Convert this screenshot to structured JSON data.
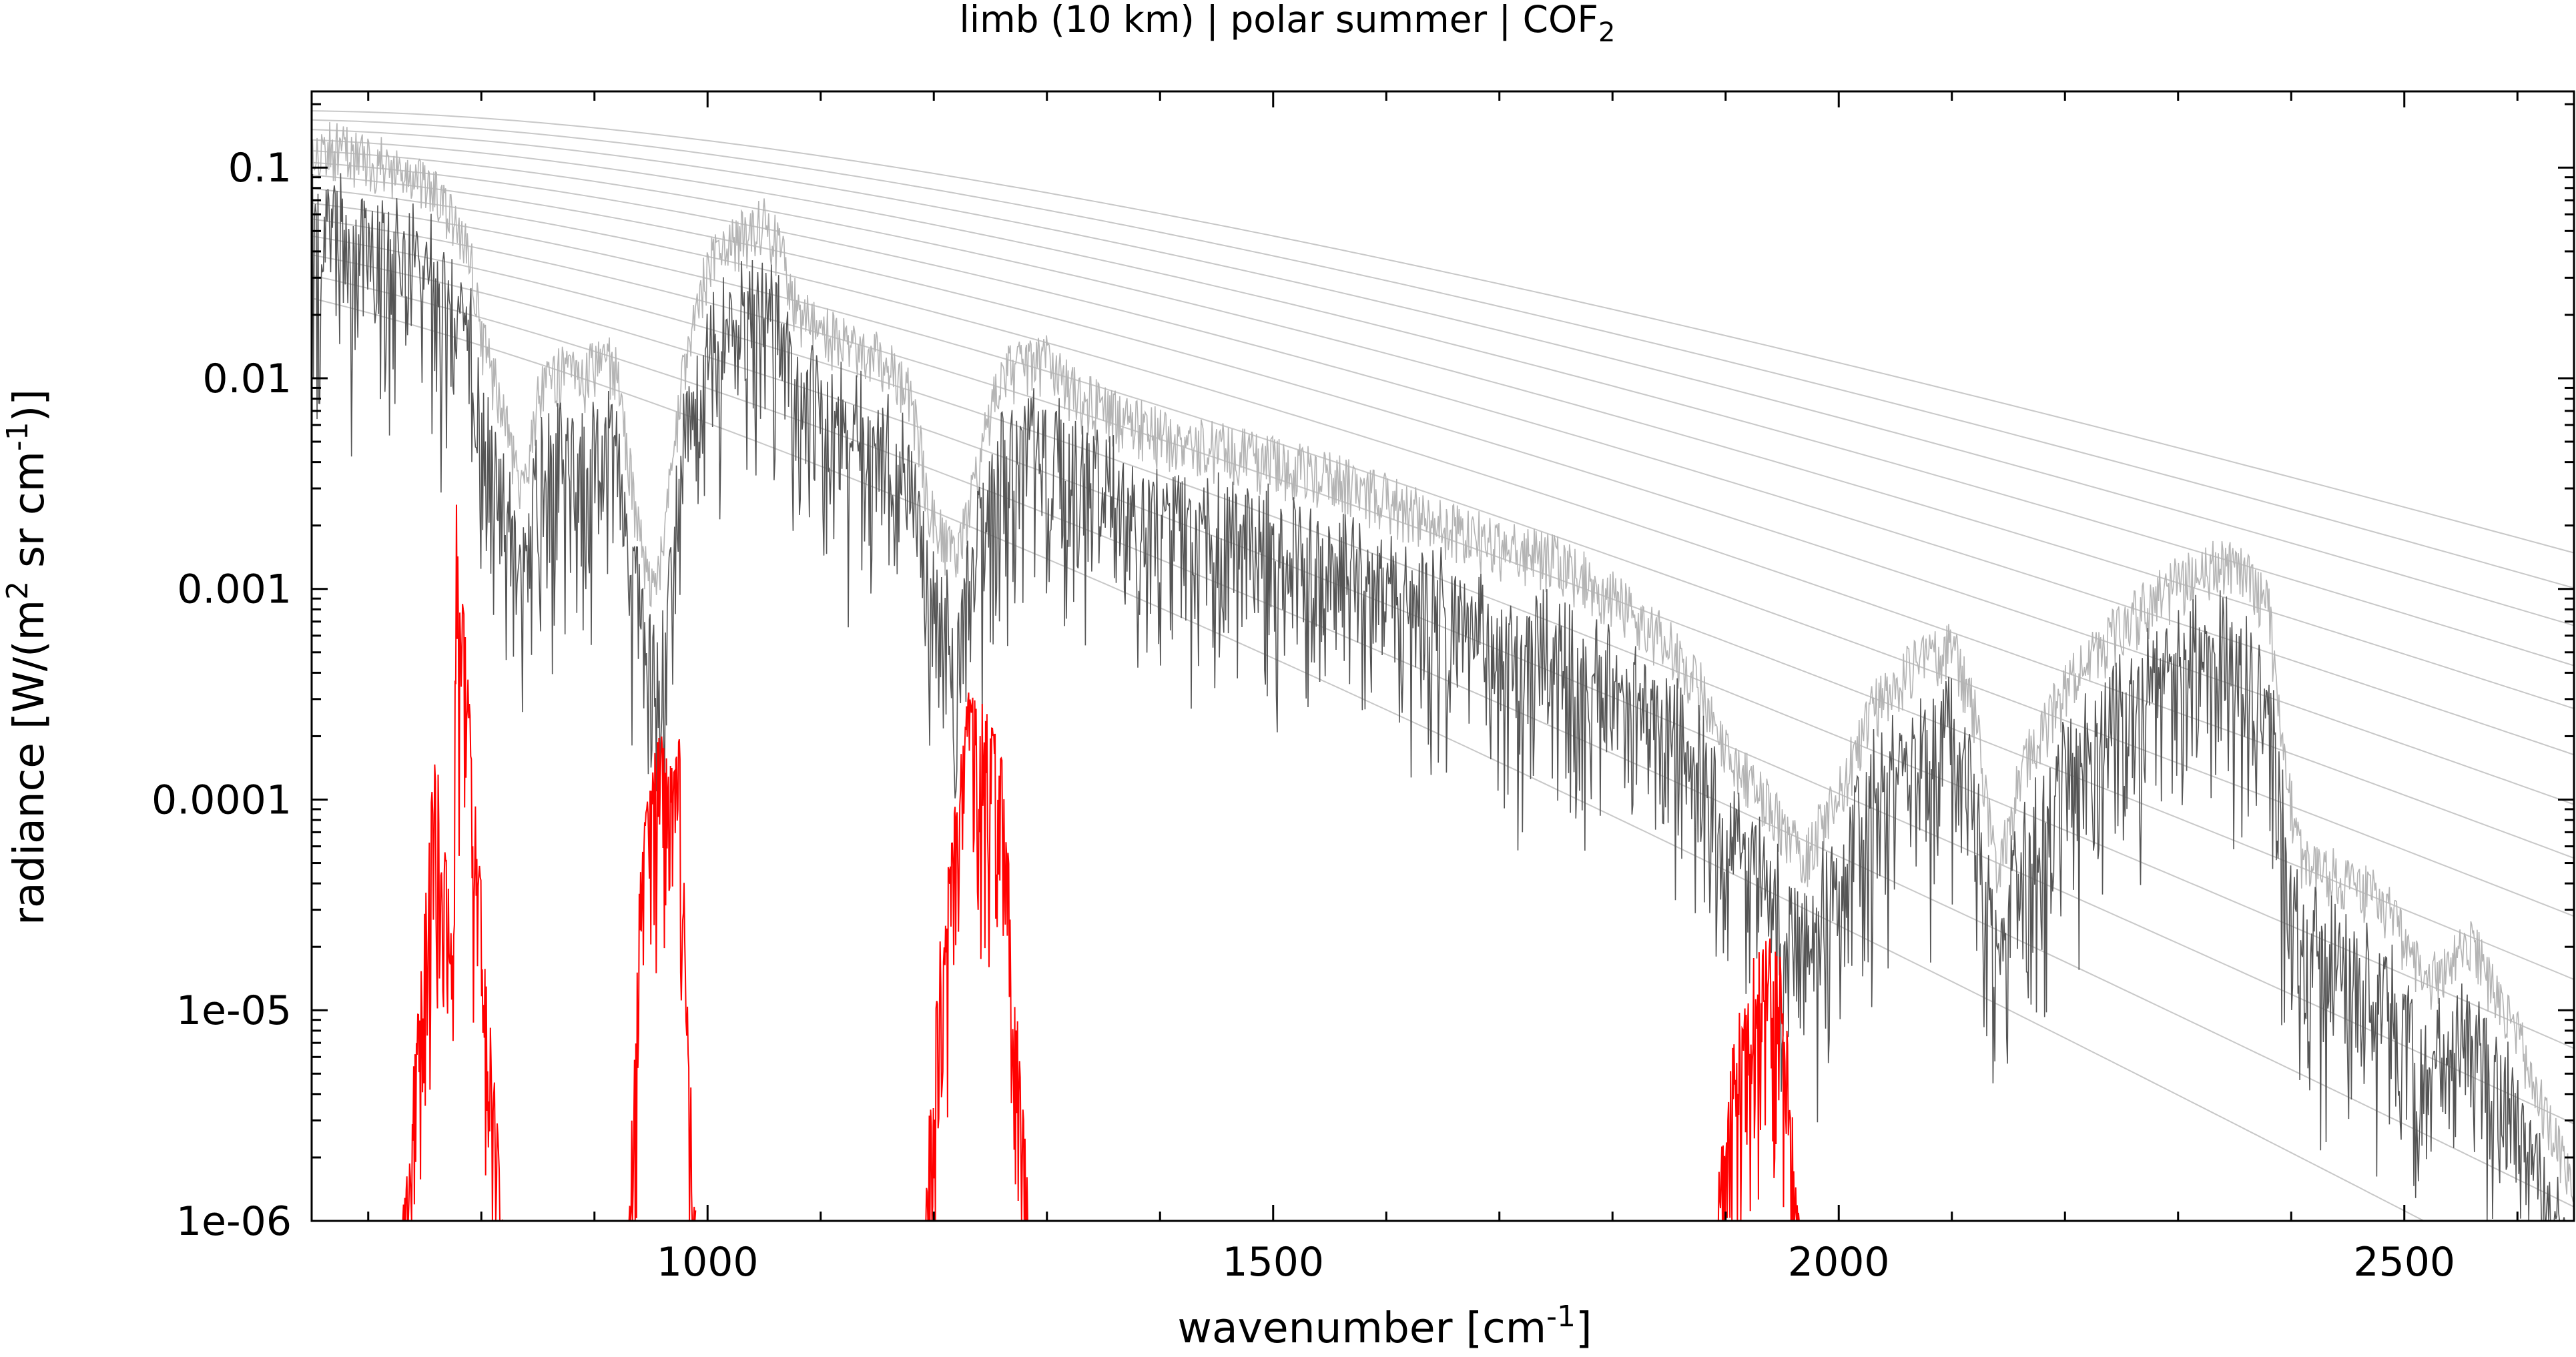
{
  "chart_data": {
    "type": "line",
    "title": {
      "prefix": "limb (10 km) | polar summer | COF",
      "sub": "2"
    },
    "xlabel": {
      "main": "wavenumber [cm",
      "sup": "-1",
      "end": "]"
    },
    "ylabel": {
      "p1": "radiance [W/(m",
      "sup1": "2",
      "p2": " sr cm",
      "sup2": "-1",
      "p3": ")]"
    },
    "x_scale": "linear",
    "y_scale": "log",
    "xlim": [
      650,
      2650
    ],
    "ylim": [
      1e-06,
      0.23
    ],
    "x_ticks": [
      {
        "value": 1000,
        "label": "1000"
      },
      {
        "value": 1500,
        "label": "1500"
      },
      {
        "value": 2000,
        "label": "2000"
      },
      {
        "value": 2500,
        "label": "2500"
      }
    ],
    "y_ticks": [
      {
        "value": 0.1,
        "label": "0.1"
      },
      {
        "value": 0.01,
        "label": "0.01"
      },
      {
        "value": 0.001,
        "label": "0.001"
      },
      {
        "value": 0.0001,
        "label": "0.0001"
      },
      {
        "value": 1e-05,
        "label": "1e-05"
      },
      {
        "value": 1e-06,
        "label": "1e-06"
      }
    ],
    "grid": false,
    "legend": "none",
    "colors": {
      "total": "#555555",
      "total_light": "#b4b4b4",
      "target": "#ff0000",
      "planck": "#c8c8c8",
      "axis": "#000000"
    },
    "series": [
      {
        "role": "total-radiance",
        "x": [
          650,
          680,
          720,
          760,
          790,
          800,
          820,
          835,
          850,
          870,
          890,
          905,
          920,
          930,
          945,
          955,
          965,
          980,
          1000,
          1030,
          1050,
          1065,
          1080,
          1120,
          1160,
          1180,
          1200,
          1220,
          1240,
          1260,
          1300,
          1330,
          1400,
          1500,
          1550,
          1600,
          1650,
          1700,
          1750,
          1800,
          1850,
          1880,
          1900,
          1930,
          1970,
          2000,
          2030,
          2060,
          2100,
          2120,
          2140,
          2160,
          2200,
          2250,
          2300,
          2340,
          2360,
          2380,
          2395,
          2410,
          2450,
          2480,
          2520,
          2560,
          2600,
          2630,
          2650
        ],
        "values": [
          0.095,
          0.09,
          0.075,
          0.055,
          0.03,
          0.012,
          0.005,
          0.002,
          0.006,
          0.008,
          0.007,
          0.01,
          0.008,
          0.003,
          0.0009,
          0.0007,
          0.002,
          0.009,
          0.025,
          0.035,
          0.04,
          0.03,
          0.015,
          0.011,
          0.009,
          0.006,
          0.0015,
          0.001,
          0.003,
          0.008,
          0.009,
          0.006,
          0.004,
          0.003,
          0.0025,
          0.002,
          0.0015,
          0.0012,
          0.001,
          0.0007,
          0.0004,
          0.00025,
          0.00012,
          8e-05,
          4e-05,
          8e-05,
          0.0002,
          0.0003,
          0.0004,
          0.0002,
          3e-05,
          0.0001,
          0.00025,
          0.0005,
          0.0008,
          0.001,
          0.0009,
          0.0006,
          0.0001,
          4e-05,
          3e-05,
          2.5e-05,
          1e-05,
          1.5e-05,
          6e-06,
          2e-06,
          1e-06
        ]
      },
      {
        "role": "target-gas-radiance",
        "bands": [
          {
            "x": [
              730,
              745,
              760,
              775,
              778,
              790,
              805,
              820
            ],
            "values": [
              1e-06,
              1.2e-05,
              0.00022,
              2e-05,
              0.003,
              0.00026,
              1.5e-05,
              1e-06
            ]
          },
          {
            "x": [
              930,
              940,
              955,
              965,
              975,
              990
            ],
            "values": [
              1e-06,
              5e-05,
              0.00025,
              0.00015,
              0.0002,
              1e-06
            ]
          },
          {
            "x": [
              1190,
              1205,
              1230,
              1245,
              1260,
              1285
            ],
            "values": [
              1e-06,
              2e-05,
              0.00033,
              0.0003,
              0.00018,
              1e-06
            ]
          },
          {
            "x": [
              1890,
              1905,
              1925,
              1940,
              1950,
              1965
            ],
            "values": [
              1e-06,
              7e-06,
              1.8e-05,
              2.3e-05,
              1.8e-05,
              1e-06
            ]
          }
        ]
      }
    ],
    "reference_curves": {
      "role": "planck-blackbody-radiance",
      "temperatures_K": [
        190,
        200,
        210,
        220,
        230,
        240,
        250,
        260,
        270,
        280,
        290,
        300,
        310,
        320
      ]
    }
  }
}
